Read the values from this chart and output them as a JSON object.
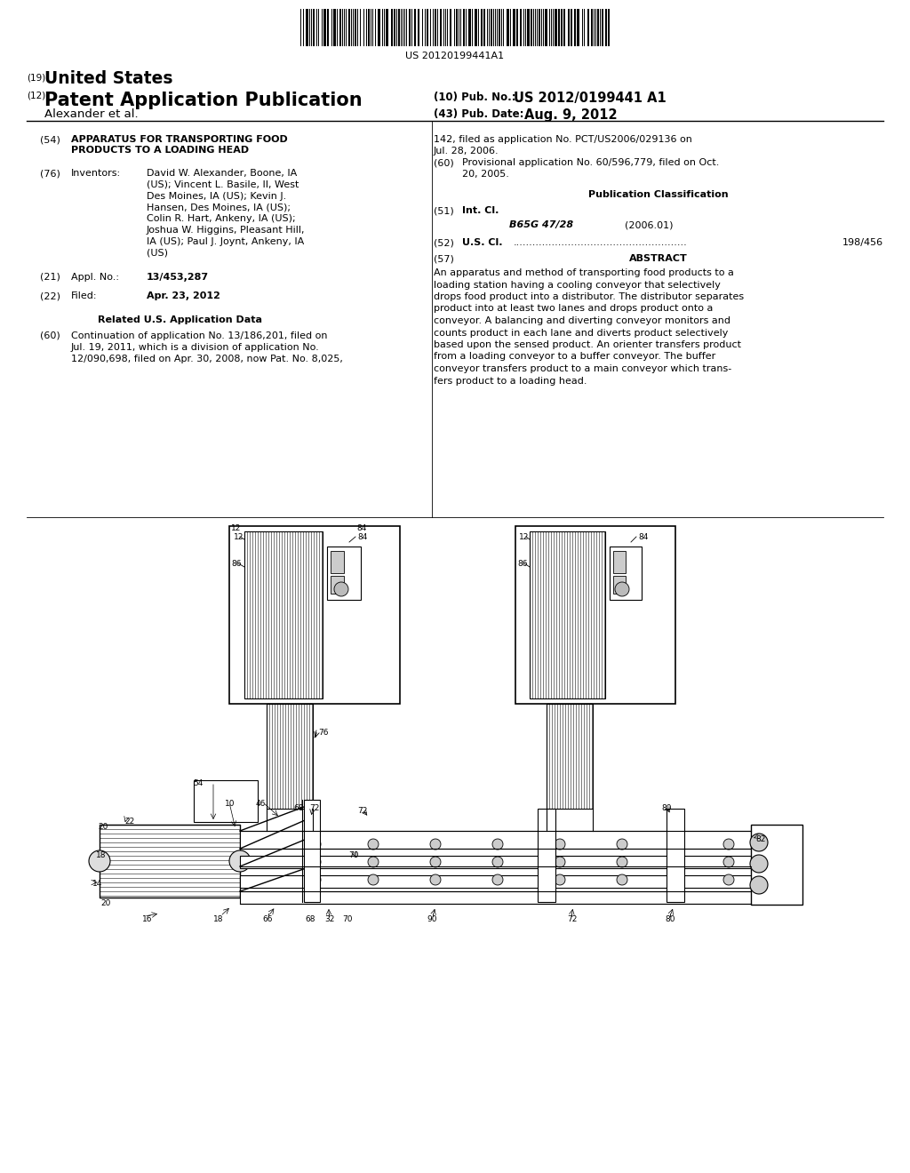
{
  "bg": "#ffffff",
  "barcode_text": "US 20120199441A1",
  "country_label": "(19)",
  "country": "United States",
  "type_label": "(12)",
  "type": "Patent Application Publication",
  "pub_no_label": "(10) Pub. No.:",
  "pub_no": "US 2012/0199441 A1",
  "author": "Alexander et al.",
  "pub_date_label": "(43) Pub. Date:",
  "pub_date": "Aug. 9, 2012",
  "title_label": "(54)",
  "title_line1": "APPARATUS FOR TRANSPORTING FOOD",
  "title_line2": "PRODUCTS TO A LOADING HEAD",
  "inv_label": "(76)",
  "inv_key": "Inventors:",
  "inv_val": "David W. Alexander, Boone, IA\n(US); Vincent L. Basile, II, West\nDes Moines, IA (US); Kevin J.\nHansen, Des Moines, IA (US);\nColin R. Hart, Ankeny, IA (US);\nJoshua W. Higgins, Pleasant Hill,\nIA (US); Paul J. Joynt, Ankeny, IA\n(US)",
  "appl_label": "(21)",
  "appl_key": "Appl. No.:",
  "appl_val": "13/453,287",
  "filed_label": "(22)",
  "filed_key": "Filed:",
  "filed_val": "Apr. 23, 2012",
  "related_header": "Related U.S. Application Data",
  "rel_label": "(60)",
  "rel_text": "Continuation of application No. 13/186,201, filed on\nJul. 19, 2011, which is a division of application No.\n12/090,698, filed on Apr. 30, 2008, now Pat. No. 8,025,",
  "cont_text": "142, filed as application No. PCT/US2006/029136 on\nJul. 28, 2006.",
  "prov_label": "(60)",
  "prov_text": "Provisional application No. 60/596,779, filed on Oct.\n20, 2005.",
  "pubclass_header": "Publication Classification",
  "intcl_label": "(51)",
  "intcl_key": "Int. Cl.",
  "intcl_class": "B65G 47/28",
  "intcl_year": "(2006.01)",
  "uscl_label": "(52)",
  "uscl_key": "U.S. Cl.",
  "uscl_dots": "......................................................",
  "uscl_val": "198/456",
  "abs_label": "(57)",
  "abs_header": "ABSTRACT",
  "abs_text": "An apparatus and method of transporting food products to a loading station having a cooling conveyor that selectively drops food product into a distributor. The distributor separates product into at least two lanes and drops product onto a conveyor. A balancing and diverting conveyor monitors and counts product in each lane and diverts product selectively based upon the sensed product. An orienter transfers product from a loading conveyor to a buffer conveyor. The buffer conveyor transfers product to a main conveyor which trans-fers product to a loading head."
}
